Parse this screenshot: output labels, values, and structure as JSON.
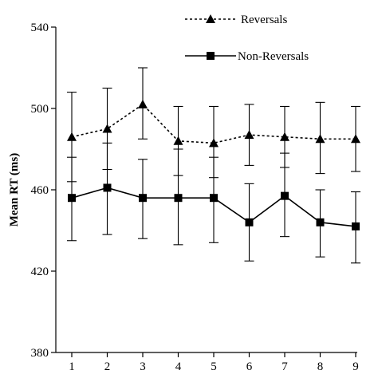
{
  "chart_data": {
    "type": "line",
    "title": "",
    "xlabel": "",
    "ylabel": "Mean RT (ms)",
    "x": [
      1,
      2,
      3,
      4,
      5,
      6,
      7,
      8,
      9
    ],
    "x_tick_labels": [
      "1",
      "2",
      "3",
      "4",
      "5",
      "6",
      "7",
      "8",
      "9"
    ],
    "ylim": [
      380,
      540
    ],
    "y_ticks": [
      380,
      420,
      460,
      500,
      540
    ],
    "y_tick_labels": [
      "380",
      "420",
      "460",
      "500",
      "540"
    ],
    "grid": false,
    "legend_position": "top-right",
    "series": [
      {
        "name": "Reversals",
        "marker": "triangle",
        "line_style": "dotted",
        "color": "#000000",
        "values": [
          486,
          490,
          502,
          484,
          483,
          487,
          486,
          485,
          485
        ],
        "error_upper": [
          508,
          510,
          520,
          501,
          501,
          502,
          501,
          503,
          501
        ],
        "error_lower": [
          464,
          470,
          485,
          467,
          466,
          472,
          471,
          468,
          469
        ]
      },
      {
        "name": "Non-Reversals",
        "marker": "square",
        "line_style": "solid",
        "color": "#000000",
        "values": [
          456,
          461,
          456,
          456,
          456,
          444,
          457,
          444,
          442
        ],
        "error_upper": [
          476,
          483,
          475,
          480,
          476,
          463,
          478,
          460,
          459
        ],
        "error_lower": [
          435,
          438,
          436,
          433,
          434,
          425,
          437,
          427,
          424
        ]
      }
    ]
  }
}
